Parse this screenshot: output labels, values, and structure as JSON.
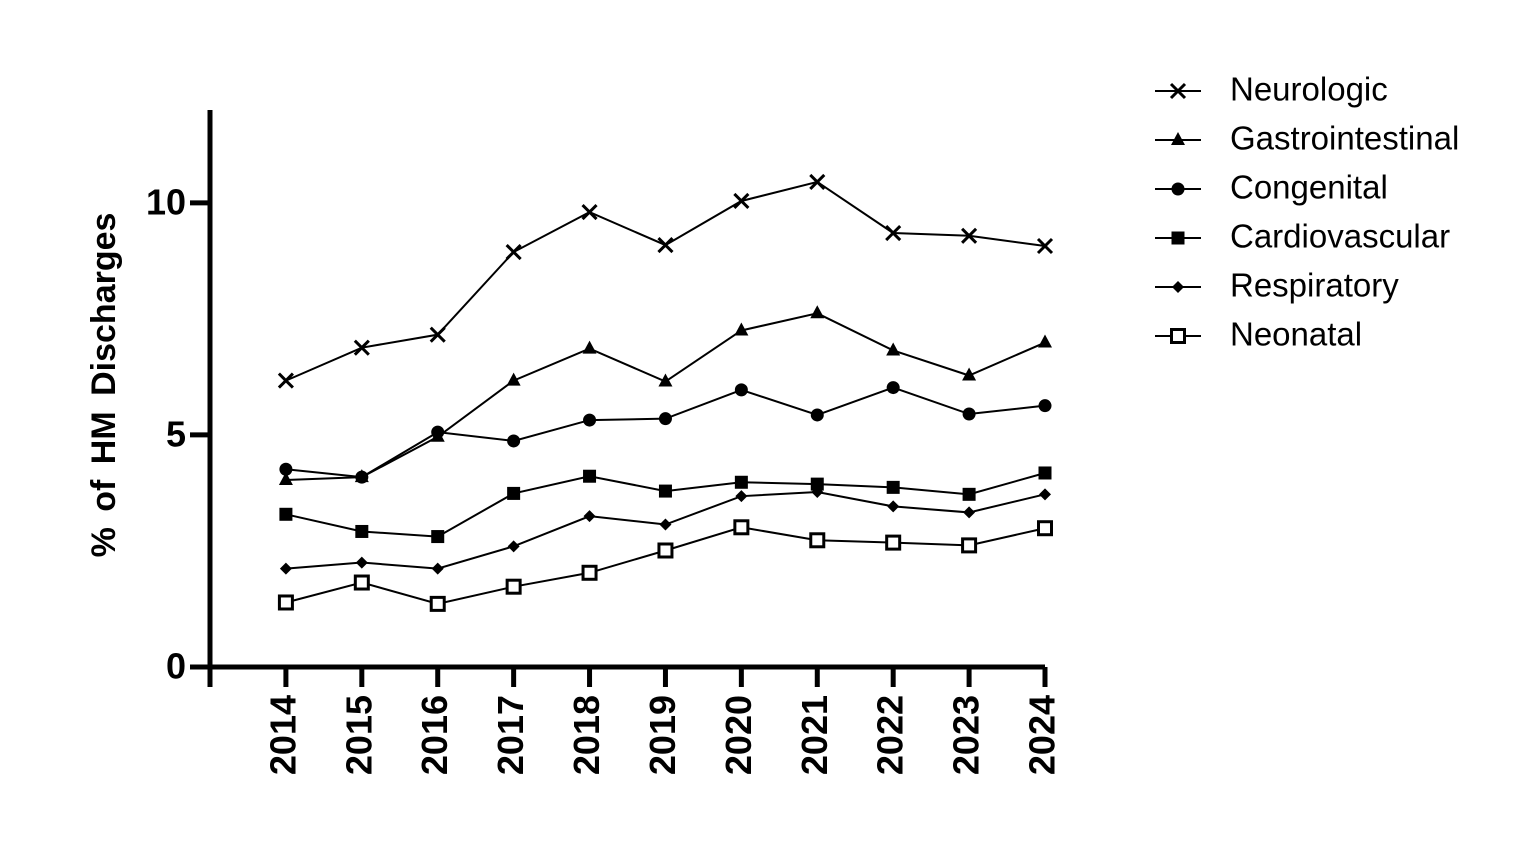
{
  "chart_data": {
    "type": "line",
    "y_label": "% of HM Discharges",
    "x": [
      2014,
      2015,
      2016,
      2017,
      2018,
      2019,
      2020,
      2021,
      2022,
      2023,
      2024
    ],
    "xlim": [
      2013,
      2024
    ],
    "xticks": [
      2014,
      2015,
      2016,
      2017,
      2018,
      2019,
      2020,
      2021,
      2022,
      2023,
      2024
    ],
    "ylim": [
      0,
      12
    ],
    "yticks": [
      0,
      5,
      10
    ],
    "legend": "right",
    "series": [
      {
        "name": "Neurologic",
        "color": "#000000",
        "marker": "x",
        "values": [
          6.17,
          6.88,
          7.16,
          8.94,
          9.8,
          9.09,
          10.04,
          10.45,
          9.35,
          9.29,
          9.07
        ]
      },
      {
        "name": "Gastrointestinal",
        "color": "#000000",
        "marker": "triangle",
        "values": [
          4.03,
          4.09,
          4.96,
          6.17,
          6.86,
          6.15,
          7.25,
          7.62,
          6.82,
          6.28,
          6.99
        ]
      },
      {
        "name": "Congenital",
        "color": "#000000",
        "marker": "circle",
        "values": [
          4.26,
          4.09,
          5.06,
          4.87,
          5.32,
          5.35,
          5.97,
          5.43,
          6.02,
          5.45,
          5.63
        ]
      },
      {
        "name": "Cardiovascular",
        "color": "#000000",
        "marker": "square",
        "values": [
          3.29,
          2.92,
          2.81,
          3.74,
          4.11,
          3.79,
          3.98,
          3.94,
          3.87,
          3.72,
          4.18
        ]
      },
      {
        "name": "Respiratory",
        "color": "#000000",
        "marker": "diamond",
        "values": [
          2.12,
          2.25,
          2.12,
          2.6,
          3.25,
          3.07,
          3.68,
          3.77,
          3.46,
          3.33,
          3.72
        ]
      },
      {
        "name": "Neonatal",
        "color": "#000000",
        "marker": "open-square",
        "values": [
          1.39,
          1.82,
          1.36,
          1.73,
          2.03,
          2.51,
          3.01,
          2.73,
          2.68,
          2.62,
          2.99
        ]
      }
    ]
  }
}
